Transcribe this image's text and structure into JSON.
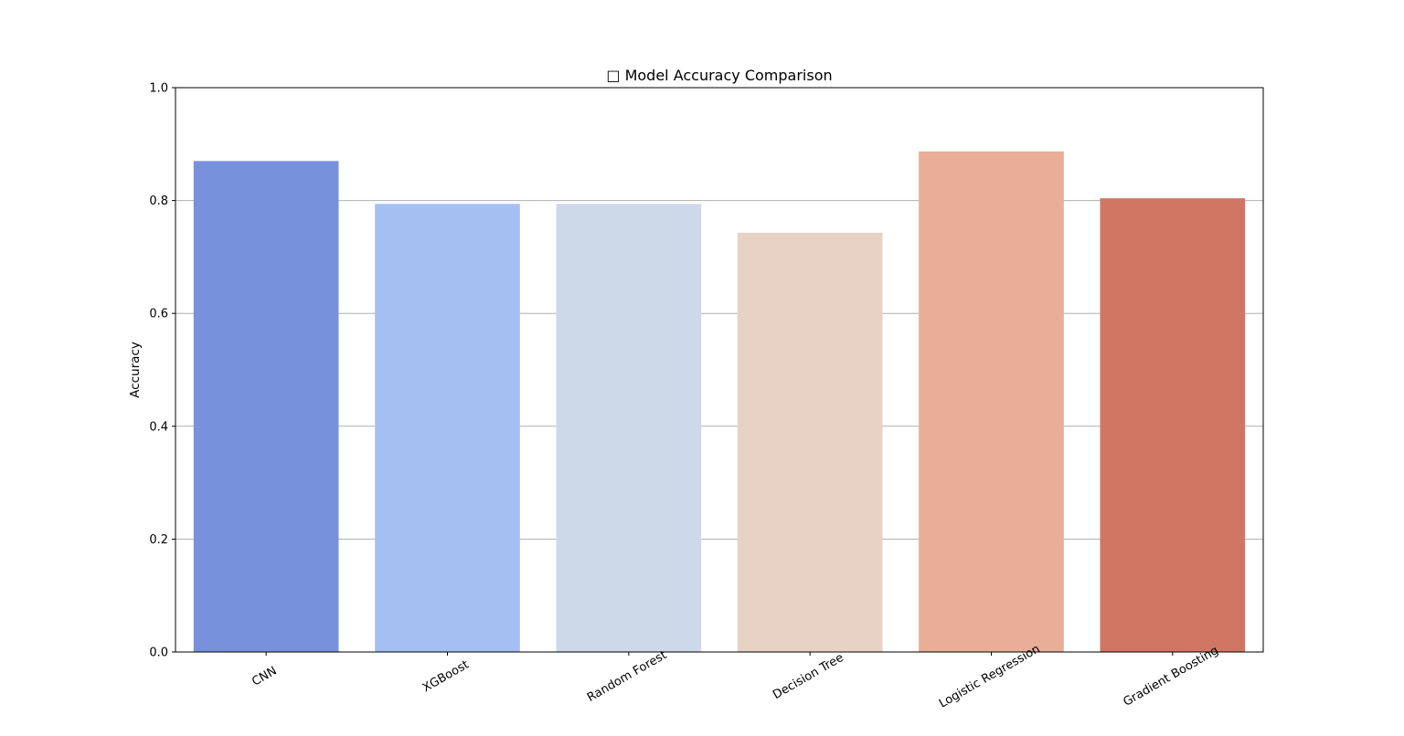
{
  "chart_data": {
    "type": "bar",
    "title": "□ Model Accuracy Comparison",
    "xlabel": "",
    "ylabel": "Accuracy",
    "categories": [
      "CNN",
      "XGBoost",
      "Random Forest",
      "Decision Tree",
      "Logistic Regression",
      "Gradient Boosting"
    ],
    "values": [
      0.87,
      0.794,
      0.794,
      0.743,
      0.887,
      0.804
    ],
    "colors": [
      "#7891dd",
      "#a5bff2",
      "#cdd8e9",
      "#e8d2c6",
      "#e9ae97",
      "#d07663"
    ],
    "ylim": [
      0,
      1.0
    ],
    "yticks": [
      "0.0",
      "0.2",
      "0.4",
      "0.6",
      "0.8",
      "1.0"
    ],
    "grid": "y",
    "legend": "none"
  }
}
